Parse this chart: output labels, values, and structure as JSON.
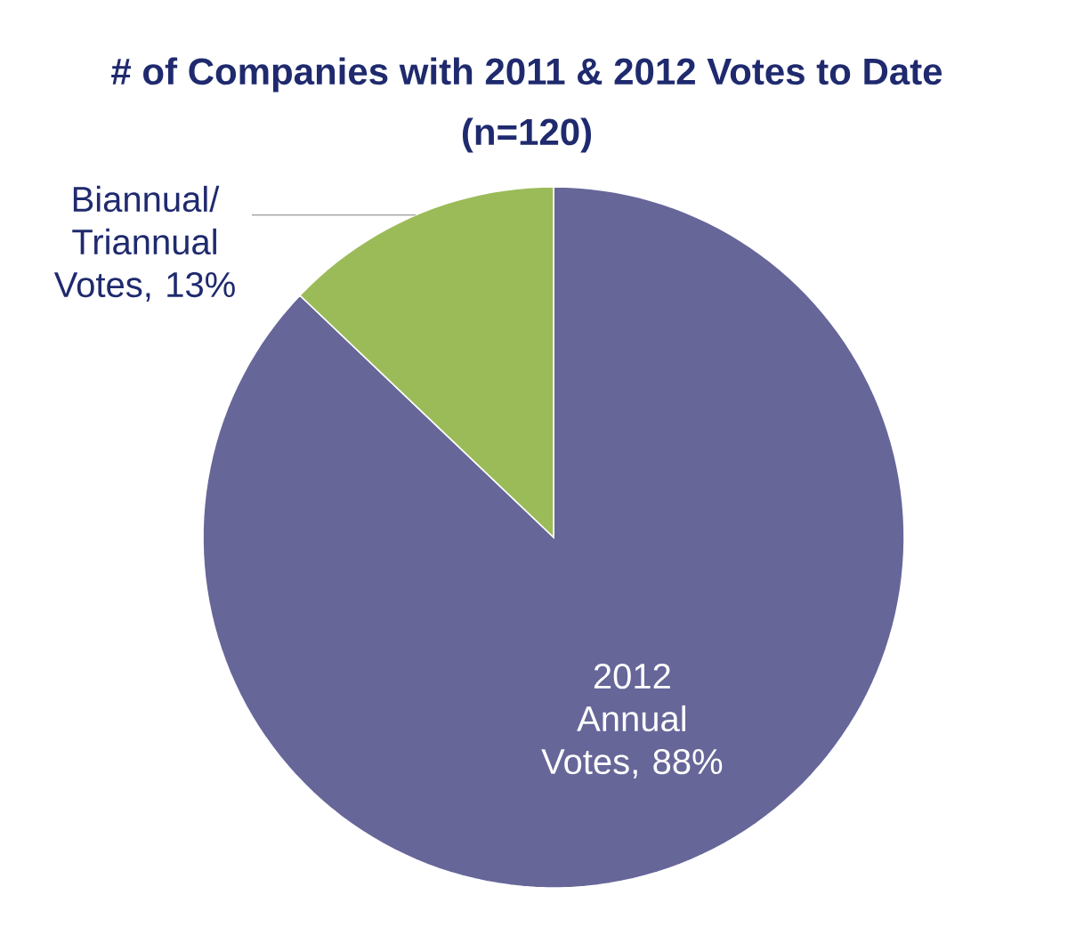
{
  "chart_data": {
    "type": "pie",
    "title": "# of Companies with 2011 & 2012 Votes to Date",
    "subtitle": "(n=120)",
    "categories": [
      "2012 Annual Votes",
      "Biannual/ Triannual Votes"
    ],
    "values": [
      88,
      13
    ],
    "value_labels": [
      ", 88%",
      ", 13%"
    ],
    "colors": [
      "#666699",
      "#9bbb59"
    ]
  }
}
